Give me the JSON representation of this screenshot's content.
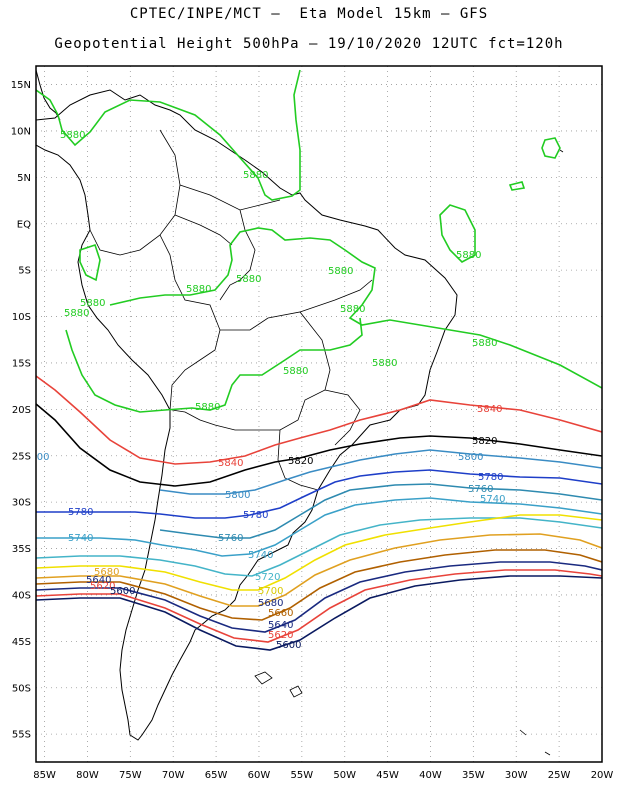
{
  "header": {
    "line1": "CPTEC/INPE/MCT –  Eta Model 15km – GFS",
    "line2": "Geopotential Height 500hPa – 19/10/2020 12UTC fct=120h"
  },
  "axes": {
    "lat_ticks": [
      "15N",
      "10N",
      "5N",
      "EQ",
      "5S",
      "10S",
      "15S",
      "20S",
      "25S",
      "30S",
      "35S",
      "40S",
      "45S",
      "50S",
      "55S"
    ],
    "lon_ticks": [
      "85W",
      "80W",
      "75W",
      "70W",
      "65W",
      "60W",
      "55W",
      "50W",
      "45W",
      "40W",
      "35W",
      "30W",
      "25W",
      "20W"
    ],
    "lat_range": [
      17,
      -58
    ],
    "lon_range": [
      -86,
      -20
    ]
  },
  "contours": [
    {
      "level": "5880",
      "color": "#22cc22"
    },
    {
      "level": "5840",
      "color": "#e8433a"
    },
    {
      "level": "5820",
      "color": "#000000"
    },
    {
      "level": "5800",
      "color": "#3a8cc4"
    },
    {
      "level": "5780",
      "color": "#1e3ec8"
    },
    {
      "level": "5760",
      "color": "#2e8ab0"
    },
    {
      "level": "5740",
      "color": "#3aa0c8"
    },
    {
      "level": "5720",
      "color": "#44b4c8"
    },
    {
      "level": "5700",
      "color": "#f0e000"
    },
    {
      "level": "5680",
      "color": "#e0a020"
    },
    {
      "level": "5660",
      "color": "#b06000"
    },
    {
      "level": "5640",
      "color": "#1a2a80"
    },
    {
      "level": "5620",
      "color": "#e8433a"
    },
    {
      "level": "5600",
      "color": "#0a1a60"
    }
  ],
  "labels": {
    "g1": "5880",
    "g2": "5880",
    "g3": "5880",
    "g4": "5880",
    "g5": "5880",
    "g6": "5880",
    "g7": "5880",
    "g8": "5880",
    "g9": "5880",
    "g10": "5880",
    "g11": "5880",
    "g12": "5880",
    "r1": "5840",
    "r2": "5840",
    "k1": "5820",
    "k2": "5820",
    "b1": "5800",
    "b2": "5800",
    "b3": "5800",
    "d1": "5780",
    "d2": "5780",
    "d3": "5780",
    "d4": "5780",
    "t1": "5760",
    "t2": "5760",
    "t3": "5760",
    "c1": "5740",
    "c2": "5740",
    "c3": "5740",
    "e1": "5720",
    "y1": "5700",
    "o1": "5680",
    "o2": "5680",
    "n1": "5660",
    "m1": "5640",
    "m2": "5640",
    "p1": "5620",
    "p2": "5620",
    "z1": "5600",
    "z2": "5600"
  }
}
